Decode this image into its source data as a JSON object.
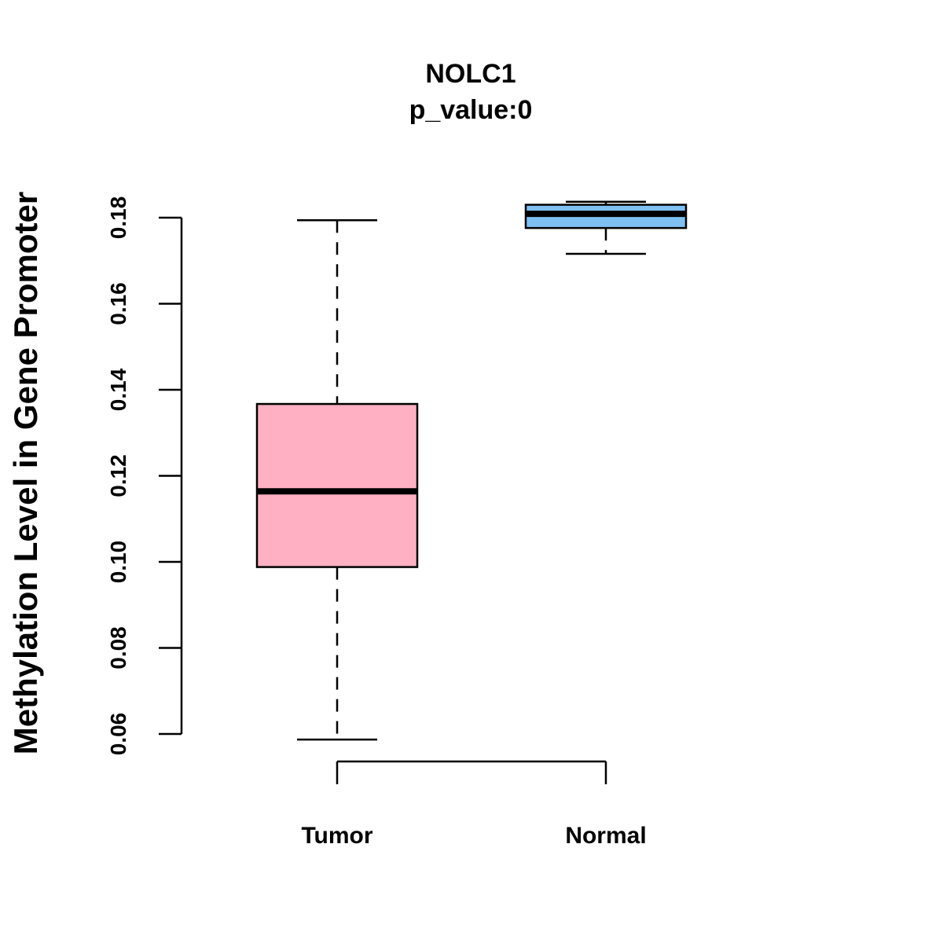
{
  "chart_data": {
    "type": "boxplot",
    "title": "NOLC1",
    "subtitle": "p_value:0",
    "xlabel": "",
    "ylabel": "Methylation Level in Gene Promoter",
    "ylim": [
      0.055,
      0.185
    ],
    "yticks": [
      0.06,
      0.08,
      0.1,
      0.12,
      0.14,
      0.16,
      0.18
    ],
    "ytick_labels": [
      "0.06",
      "0.08",
      "0.10",
      "0.12",
      "0.14",
      "0.16",
      "0.18"
    ],
    "categories": [
      "Tumor",
      "Normal"
    ],
    "grid": false,
    "series": [
      {
        "name": "Tumor",
        "color": "#FFB1C3",
        "whisker_low": 0.0587,
        "q1": 0.0988,
        "median": 0.1164,
        "q3": 0.1367,
        "whisker_high": 0.1794
      },
      {
        "name": "Normal",
        "color": "#7FC0F2",
        "whisker_low": 0.1716,
        "q1": 0.1776,
        "median": 0.1809,
        "q3": 0.183,
        "whisker_high": 0.1837
      }
    ]
  }
}
